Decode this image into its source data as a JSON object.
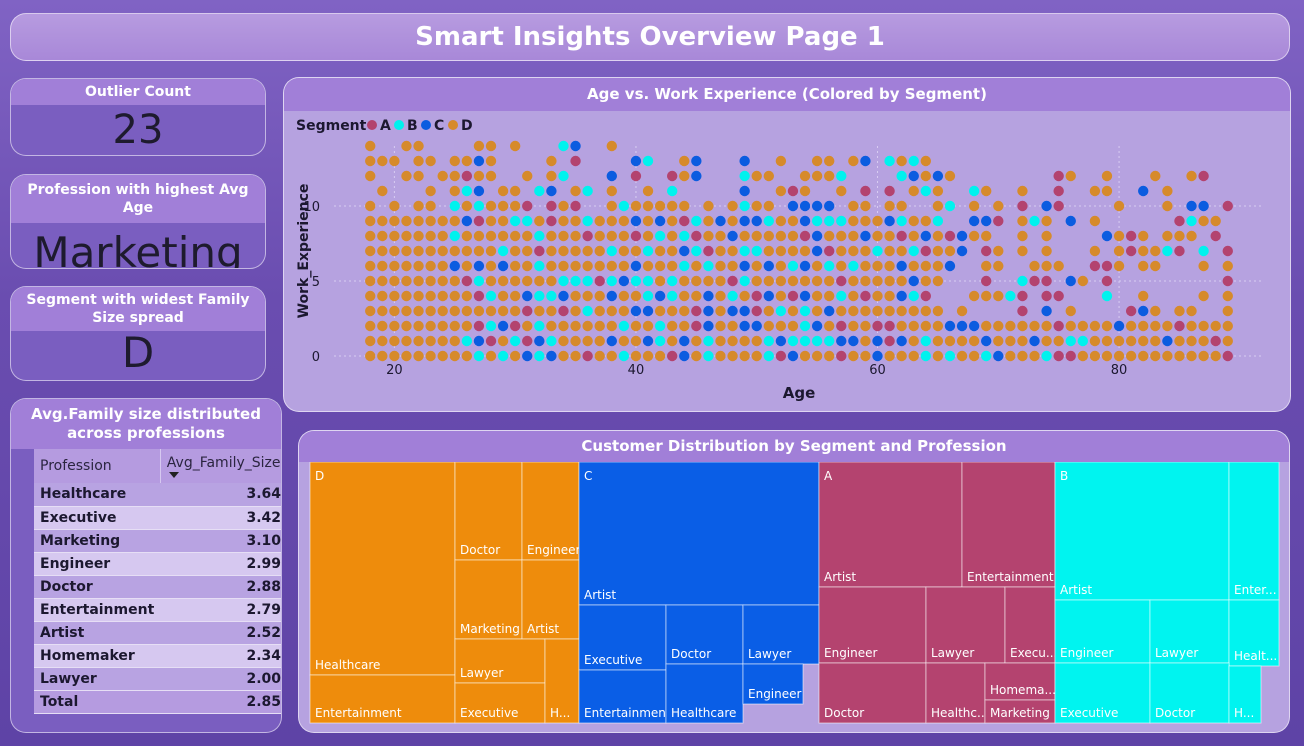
{
  "title": "Smart Insights Overview Page 1",
  "kpis": {
    "outlier": {
      "label": "Outlier Count",
      "value": "23"
    },
    "profession": {
      "label": "Profession with highest Avg Age",
      "value": "Marketing"
    },
    "segment": {
      "label": "Segment with widest Family Size spread",
      "value": "D"
    }
  },
  "family_table": {
    "title": "Avg.Family size distributed across professions",
    "col_profession": "Profession",
    "col_value": "Avg_Family_Size",
    "rows": [
      {
        "profession": "Healthcare",
        "value": "3.64"
      },
      {
        "profession": "Executive",
        "value": "3.42"
      },
      {
        "profession": "Marketing",
        "value": "3.10"
      },
      {
        "profession": "Engineer",
        "value": "2.99"
      },
      {
        "profession": "Doctor",
        "value": "2.88"
      },
      {
        "profession": "Entertainment",
        "value": "2.79"
      },
      {
        "profession": "Artist",
        "value": "2.52"
      },
      {
        "profession": "Homemaker",
        "value": "2.34"
      },
      {
        "profession": "Lawyer",
        "value": "2.00"
      }
    ],
    "total_label": "Total",
    "total_value": "2.85"
  },
  "colors": {
    "A": "#b3436f",
    "B": "#00f2ee",
    "C": "#0b5ce0",
    "D": "#e98a10",
    "D_dot": "#d68a2b"
  },
  "chart_data": [
    {
      "type": "scatter",
      "title": "Age vs. Work Experience (Colored by Segment)",
      "xlabel": "Age",
      "ylabel": "Work_Experience",
      "xlim": [
        15,
        92
      ],
      "ylim": [
        0,
        14
      ],
      "xticks": [
        20,
        40,
        60,
        80
      ],
      "yticks": [
        0,
        5,
        10
      ],
      "legend_title": "Segment",
      "legend": [
        "A",
        "B",
        "C",
        "D"
      ],
      "legend_position": "top-left",
      "grid": true,
      "density": [
        {
          "age_range": [
            18,
            24
          ],
          "max_exp": 14,
          "mix": "D"
        },
        {
          "age_range": [
            25,
            43
          ],
          "max_exp": 14,
          "mix": "D,B,C,A"
        },
        {
          "age_range": [
            44,
            64
          ],
          "max_exp": 13,
          "mix": "D,C,B,A"
        },
        {
          "age_range": [
            65,
            89
          ],
          "max_exp": 12,
          "mix": "D,A,C,B"
        }
      ]
    },
    {
      "type": "treemap",
      "title": "Customer Distribution by Segment and Profession",
      "segments": [
        {
          "name": "D",
          "children": [
            "Healthcare",
            "Entertainment",
            "Doctor",
            "Engineer",
            "Marketing",
            "Artist",
            "Lawyer",
            "Executive",
            "H..."
          ]
        },
        {
          "name": "C",
          "children": [
            "Artist",
            "Executive",
            "Entertainment",
            "Doctor",
            "Healthcare",
            "Lawyer",
            "Engineer"
          ]
        },
        {
          "name": "A",
          "children": [
            "Artist",
            "Entertainment",
            "Engineer",
            "Doctor",
            "Lawyer",
            "Execu...",
            "Healthc...",
            "Homema...",
            "Marketing"
          ]
        },
        {
          "name": "B",
          "children": [
            "Artist",
            "Enter...",
            "Engineer",
            "Lawyer",
            "Healt...",
            "Executive",
            "Doctor",
            "H..."
          ]
        }
      ]
    }
  ]
}
